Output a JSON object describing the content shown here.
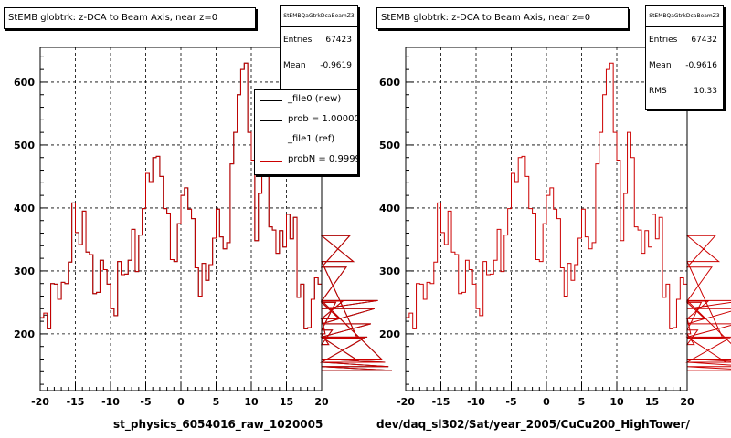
{
  "colors": {
    "ref": "#cc0000",
    "new": "#000000",
    "grid": "#000000"
  },
  "panels": [
    {
      "title": "StEMB globtrk: z-DCA to Beam Axis, near z=0",
      "stats": {
        "name": "StEMBQaGtrkDcaBeamZ3",
        "rows": [
          {
            "key": "Entries",
            "value": "67423"
          },
          {
            "key": "Mean",
            "value": "-0.9619"
          }
        ]
      },
      "legend": [
        {
          "label": "_file0 (new)",
          "color": "#000000"
        },
        {
          "label": "prob = 1.000000",
          "color": "#000000"
        },
        {
          "label": "_file1 (ref)",
          "color": "#cc0000"
        },
        {
          "label": "probN = 0.999940",
          "color": "#cc0000"
        }
      ],
      "xlabel": "st_physics_6054016_raw_1020005"
    },
    {
      "title": "StEMB globtrk: z-DCA to Beam Axis, near z=0",
      "stats": {
        "name": "StEMBQaGtrkDcaBeamZ3",
        "rows": [
          {
            "key": "Entries",
            "value": "67432"
          },
          {
            "key": "Mean",
            "value": "-0.9616"
          },
          {
            "key": "RMS",
            "value": "10.33"
          }
        ]
      },
      "legend": [],
      "xlabel": "dev/daq_sl302/Sat/year_2005/CuCu200_HighTower/"
    }
  ],
  "chart_data": [
    {
      "type": "step",
      "xlim": [
        -20,
        20
      ],
      "ylim": [
        110,
        655
      ],
      "bin_width": 0.5,
      "x_ticks": [
        -20,
        -15,
        -10,
        -5,
        0,
        5,
        10,
        15,
        20
      ],
      "y_ticks": [
        200,
        300,
        400,
        500,
        600
      ],
      "series": [
        {
          "name": "_file0 (new)",
          "color": "#000000",
          "values": [
            225,
            230,
            208,
            280,
            279,
            255,
            282,
            280,
            314,
            408,
            361,
            342,
            395,
            330,
            326,
            264,
            266,
            317,
            302,
            279,
            240,
            229,
            315,
            294,
            295,
            317,
            366,
            299,
            357,
            399,
            455,
            442,
            480,
            482,
            450,
            399,
            392,
            318,
            315,
            375,
            420,
            432,
            398,
            383,
            305,
            260,
            312,
            285,
            310,
            352,
            398,
            354,
            335,
            345,
            470,
            520,
            580,
            620,
            630,
            520,
            476,
            348,
            423,
            520,
            480,
            370,
            365,
            328,
            364,
            338,
            390,
            351,
            385,
            258,
            279,
            208,
            210,
            255,
            289,
            279,
            225,
            200,
            183,
            206,
            250,
            224,
            252,
            306,
            356,
            315,
            195,
            155,
            193,
            195,
            216,
            240,
            253,
            160,
            155,
            148,
            142
          ]
        },
        {
          "name": "_file1 (ref)",
          "color": "#cc0000",
          "values": [
            226,
            233,
            208,
            280,
            279,
            255,
            282,
            280,
            314,
            408,
            361,
            342,
            395,
            330,
            326,
            264,
            266,
            317,
            302,
            279,
            240,
            229,
            315,
            294,
            295,
            317,
            366,
            299,
            357,
            399,
            455,
            442,
            480,
            482,
            450,
            399,
            392,
            318,
            315,
            375,
            420,
            432,
            398,
            383,
            305,
            260,
            312,
            285,
            310,
            352,
            398,
            354,
            335,
            345,
            470,
            520,
            580,
            620,
            630,
            520,
            476,
            348,
            423,
            520,
            480,
            370,
            365,
            328,
            364,
            338,
            390,
            351,
            385,
            258,
            279,
            208,
            210,
            255,
            289,
            279,
            225,
            200,
            183,
            206,
            250,
            224,
            252,
            306,
            356,
            315,
            195,
            155,
            193,
            195,
            216,
            240,
            253,
            160,
            155,
            148,
            142
          ]
        }
      ]
    },
    {
      "type": "step",
      "xlim": [
        -20,
        20
      ],
      "ylim": [
        110,
        655
      ],
      "bin_width": 0.5,
      "x_ticks": [
        -20,
        -15,
        -10,
        -5,
        0,
        5,
        10,
        15,
        20
      ],
      "y_ticks": [
        200,
        300,
        400,
        500,
        600
      ],
      "series": [
        {
          "name": "",
          "color": "#cc0000",
          "values": [
            226,
            233,
            208,
            280,
            279,
            255,
            282,
            280,
            314,
            408,
            361,
            342,
            395,
            330,
            326,
            264,
            266,
            317,
            302,
            279,
            240,
            229,
            315,
            294,
            295,
            317,
            366,
            299,
            357,
            399,
            455,
            442,
            480,
            482,
            450,
            399,
            392,
            318,
            315,
            375,
            420,
            432,
            398,
            383,
            305,
            260,
            312,
            285,
            310,
            352,
            398,
            354,
            335,
            345,
            470,
            520,
            580,
            620,
            630,
            520,
            476,
            348,
            423,
            520,
            480,
            370,
            365,
            328,
            364,
            338,
            390,
            351,
            385,
            258,
            279,
            208,
            210,
            255,
            289,
            279,
            225,
            200,
            183,
            206,
            250,
            224,
            252,
            306,
            356,
            315,
            195,
            155,
            193,
            195,
            216,
            240,
            253,
            160,
            155,
            148,
            142
          ]
        }
      ]
    }
  ]
}
